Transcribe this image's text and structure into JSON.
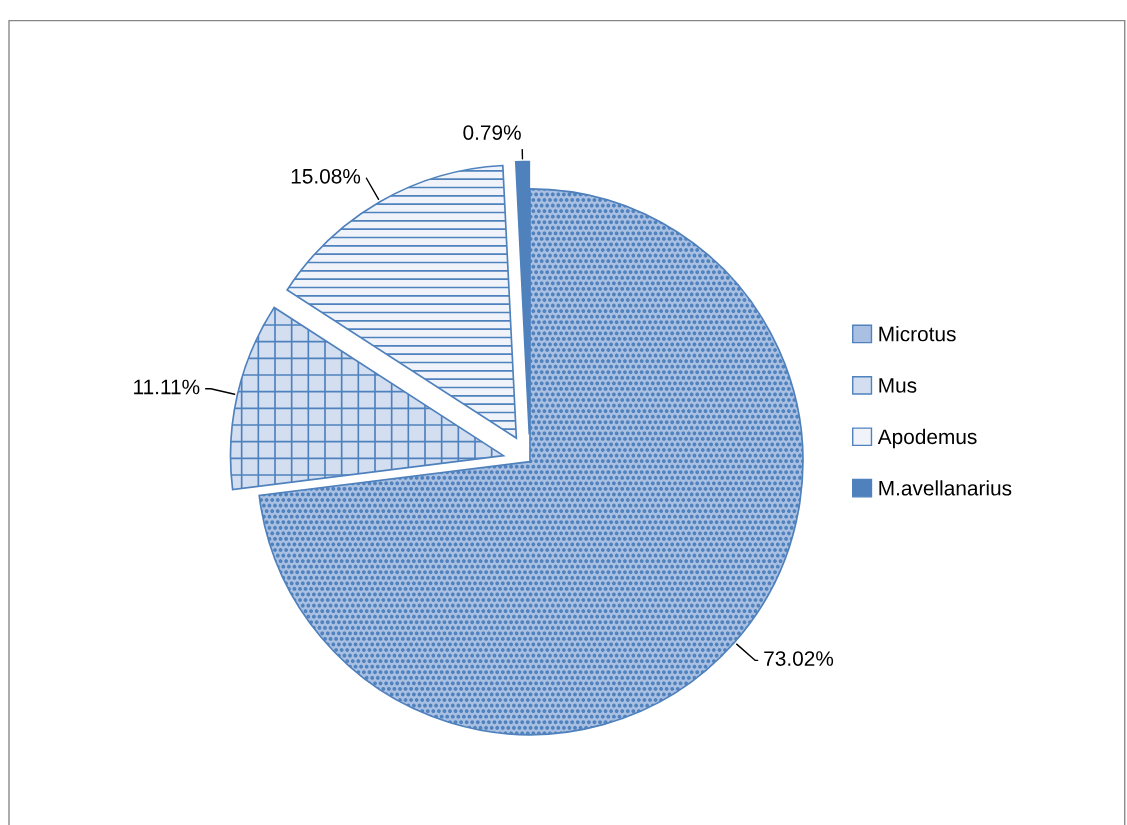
{
  "chart_data": {
    "type": "pie",
    "categories": [
      "Microtus",
      "Mus",
      "Apodemus",
      "M.avellanarius"
    ],
    "values": [
      73.02,
      11.11,
      15.08,
      0.79
    ],
    "colors": [
      "#a9c0e2",
      "#d3dff0",
      "#f0f4fa",
      "#4f81bd"
    ],
    "value_labels": [
      "73.02%",
      "11.11%",
      "15.08%",
      "0.79%"
    ],
    "legend": "right"
  }
}
